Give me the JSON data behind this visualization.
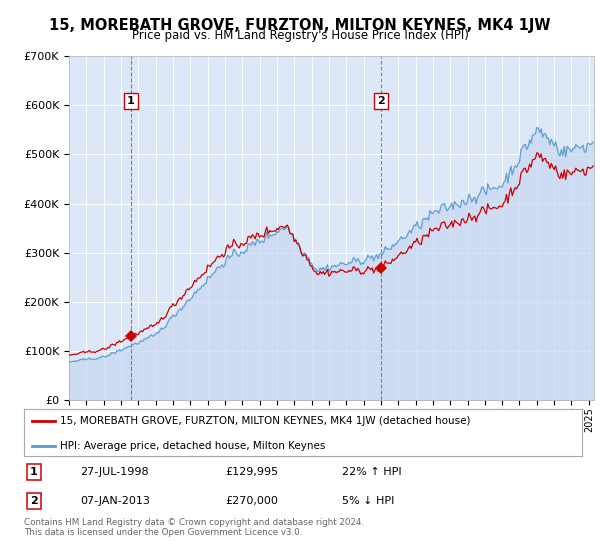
{
  "title": "15, MOREBATH GROVE, FURZTON, MILTON KEYNES, MK4 1JW",
  "subtitle": "Price paid vs. HM Land Registry's House Price Index (HPI)",
  "legend_line1": "15, MOREBATH GROVE, FURZTON, MILTON KEYNES, MK4 1JW (detached house)",
  "legend_line2": "HPI: Average price, detached house, Milton Keynes",
  "sale1_label": "1",
  "sale1_date": "27-JUL-1998",
  "sale1_price": "£129,995",
  "sale1_hpi": "22% ↑ HPI",
  "sale2_label": "2",
  "sale2_date": "07-JAN-2013",
  "sale2_price": "£270,000",
  "sale2_hpi": "5% ↓ HPI",
  "footnote": "Contains HM Land Registry data © Crown copyright and database right 2024.\nThis data is licensed under the Open Government Licence v3.0.",
  "sale1_year": 1998.57,
  "sale1_value": 129995,
  "sale2_year": 2013.02,
  "sale2_value": 270000,
  "red_color": "#cc0000",
  "blue_fill_color": "#c8d8f0",
  "blue_line_color": "#5599cc",
  "plot_bg": "#dce8f8",
  "ylim": [
    0,
    700000
  ],
  "xlim_start": 1995.0,
  "xlim_end": 2025.3
}
